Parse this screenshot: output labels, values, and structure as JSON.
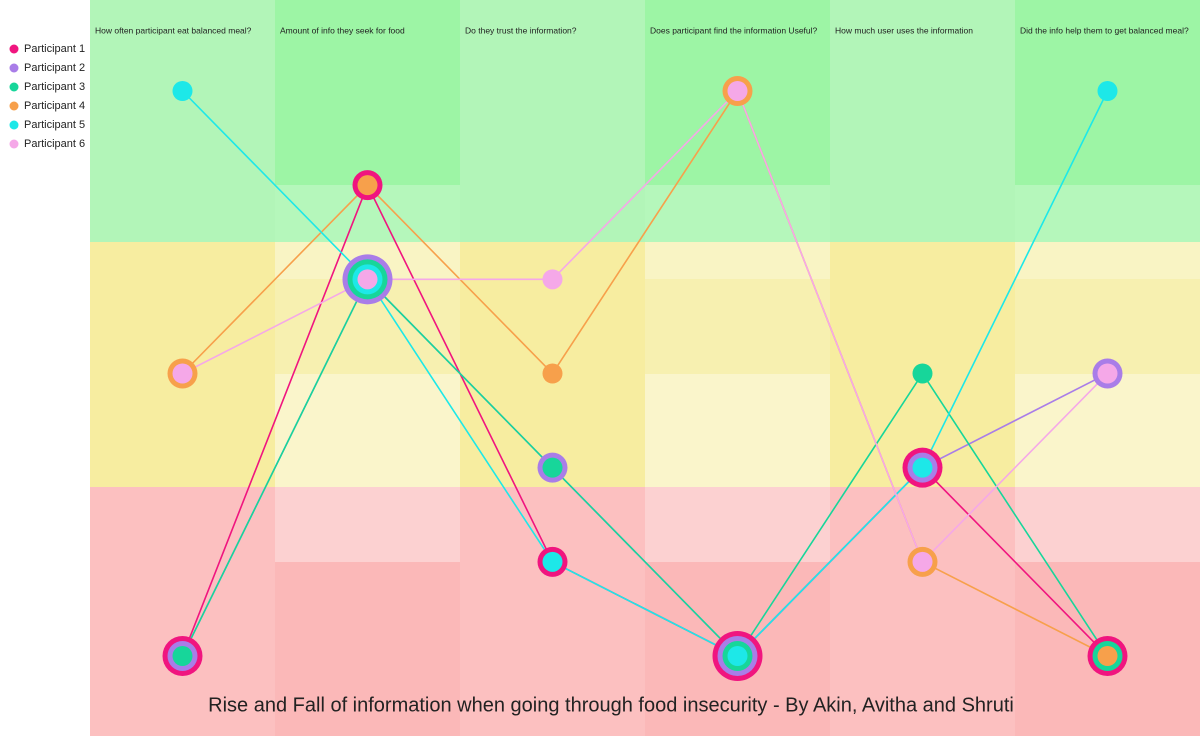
{
  "chart_data": {
    "type": "parallel",
    "title": "Rise and Fall of information when going through food insecurity - By Akin, Avitha and Shruti",
    "categories": [
      "How often participant eat balanced meal?",
      "Amount of info they seek for food",
      "Do they trust the information?",
      "Does participant find the information Useful?",
      "How much user uses the information",
      "Did the info help them to get balanced meal?"
    ],
    "ylim": [
      1,
      7
    ],
    "legend": "top-left",
    "series": [
      {
        "name": "Participant 1",
        "color": "#f0157f",
        "values": [
          1,
          6,
          2,
          1,
          3,
          1
        ]
      },
      {
        "name": "Participant 2",
        "color": "#a97de8",
        "values": [
          1,
          5,
          3,
          1,
          3,
          4
        ]
      },
      {
        "name": "Participant 3",
        "color": "#17d69a",
        "values": [
          1,
          5,
          3,
          1,
          4,
          1
        ]
      },
      {
        "name": "Participant 4",
        "color": "#f7a04b",
        "values": [
          4,
          6,
          4,
          7,
          2,
          1
        ]
      },
      {
        "name": "Participant 5",
        "color": "#1de8e8",
        "values": [
          7,
          5,
          2,
          1,
          3,
          7
        ]
      },
      {
        "name": "Participant 6",
        "color": "#f5a8e8",
        "values": [
          4,
          5,
          5,
          7,
          2,
          4
        ]
      }
    ]
  }
}
